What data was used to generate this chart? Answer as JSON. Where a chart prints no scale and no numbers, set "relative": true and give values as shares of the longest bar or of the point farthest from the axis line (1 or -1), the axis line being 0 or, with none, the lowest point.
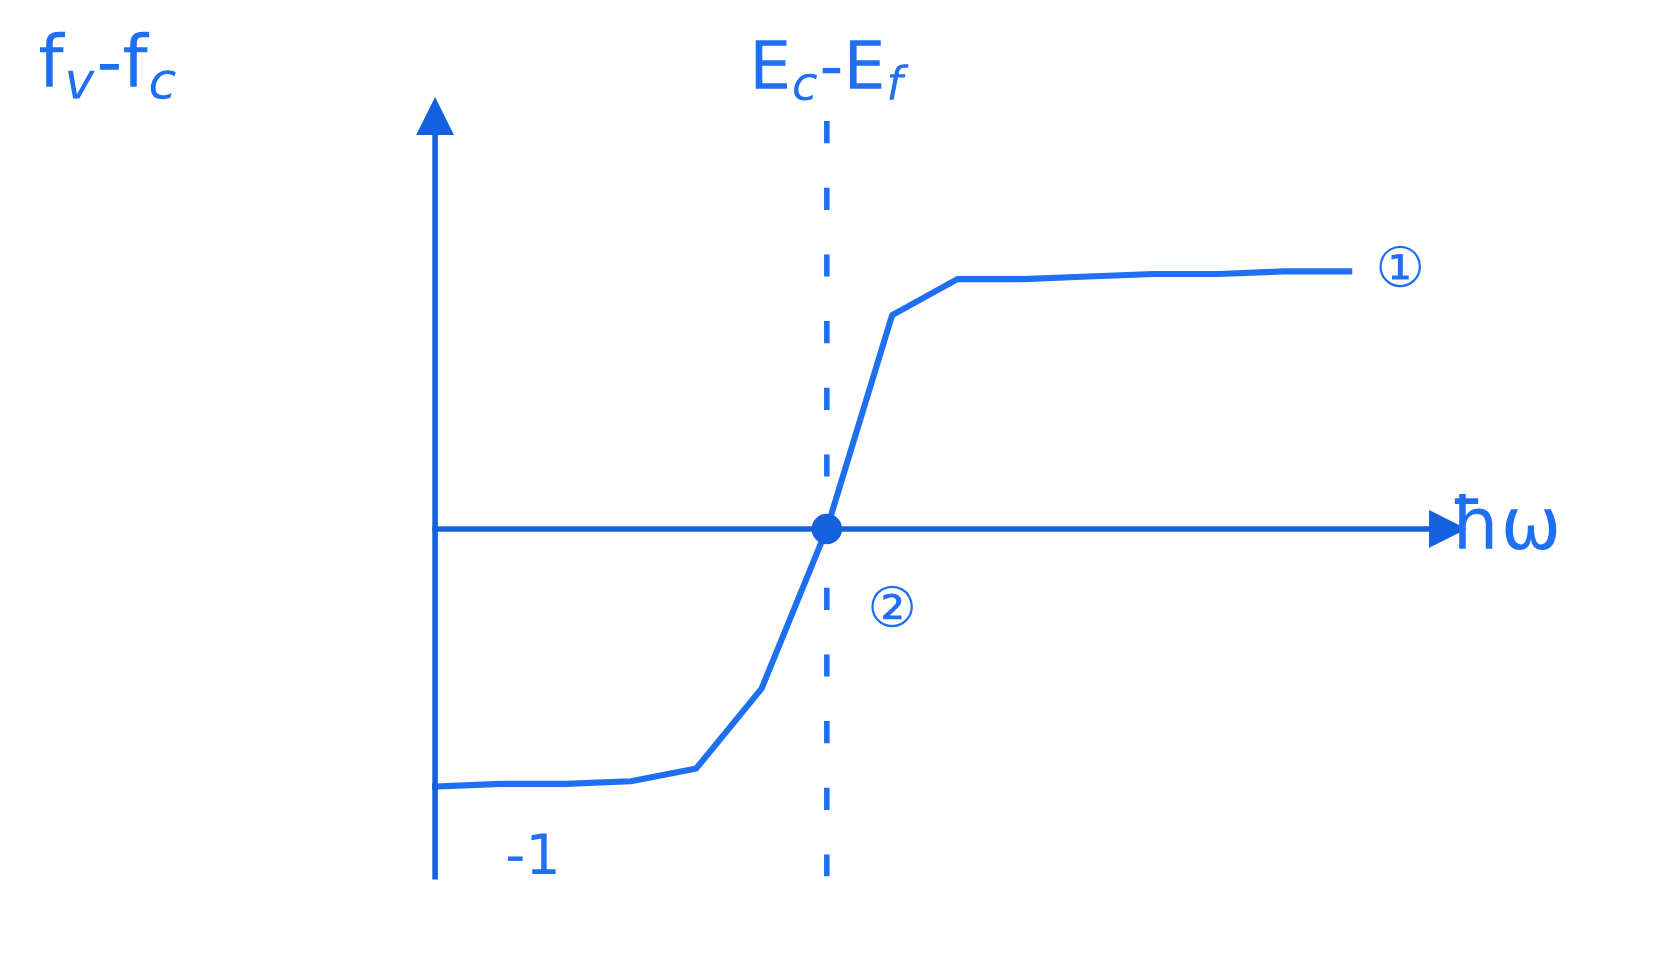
{
  "chart_data": {
    "type": "line",
    "relative": true,
    "xlabel": "ħω",
    "ylabel": "f$_{v}$-f$_{c}$",
    "categories": [
      null,
      null,
      null,
      null,
      null,
      null,
      null,
      null,
      null,
      null,
      null,
      null,
      null,
      null,
      null
    ],
    "series": [
      {
        "color": "#1f6ff2",
        "values": [
          -1,
          -0.99,
          -0.99,
          -0.98,
          -0.93,
          -0.62,
          0,
          0.83,
          0.97,
          0.97,
          0.98,
          0.99,
          0.99,
          1.0,
          1.0
        ]
      }
    ],
    "annotations": [
      "①",
      "②",
      "-1",
      "E$_{c}$-E$_{f}$"
    ],
    "ref_lines": [
      {
        "axis": "y",
        "value": 0,
        "color": "#1560dc"
      }
    ],
    "grid": false,
    "legend": false
  }
}
